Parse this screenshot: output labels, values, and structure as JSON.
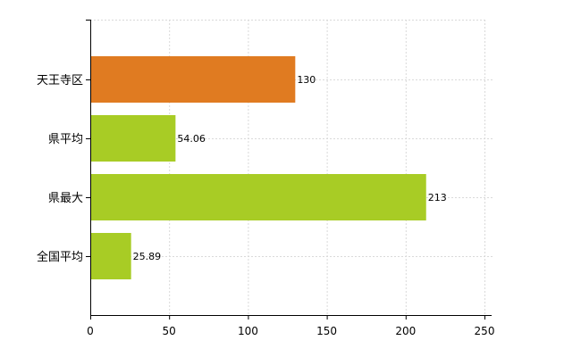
{
  "chart_data": {
    "type": "bar",
    "orientation": "horizontal",
    "categories": [
      "天王寺区",
      "県平均",
      "県最大",
      "全国平均"
    ],
    "values": [
      130,
      54.06,
      213,
      25.89
    ],
    "data_labels": [
      "130",
      "54.06",
      "213",
      "25.89"
    ],
    "bar_colors": [
      "#e07b21",
      "#a8cc25",
      "#a8cc25",
      "#a8cc25"
    ],
    "xlim": [
      0,
      250
    ],
    "x_ticks": [
      0,
      50,
      100,
      150,
      200,
      250
    ],
    "x_tick_labels": [
      "0",
      "50",
      "100",
      "150",
      "200",
      "250"
    ],
    "grid": true,
    "legend": "none",
    "title": "",
    "xlabel": "",
    "ylabel": ""
  }
}
